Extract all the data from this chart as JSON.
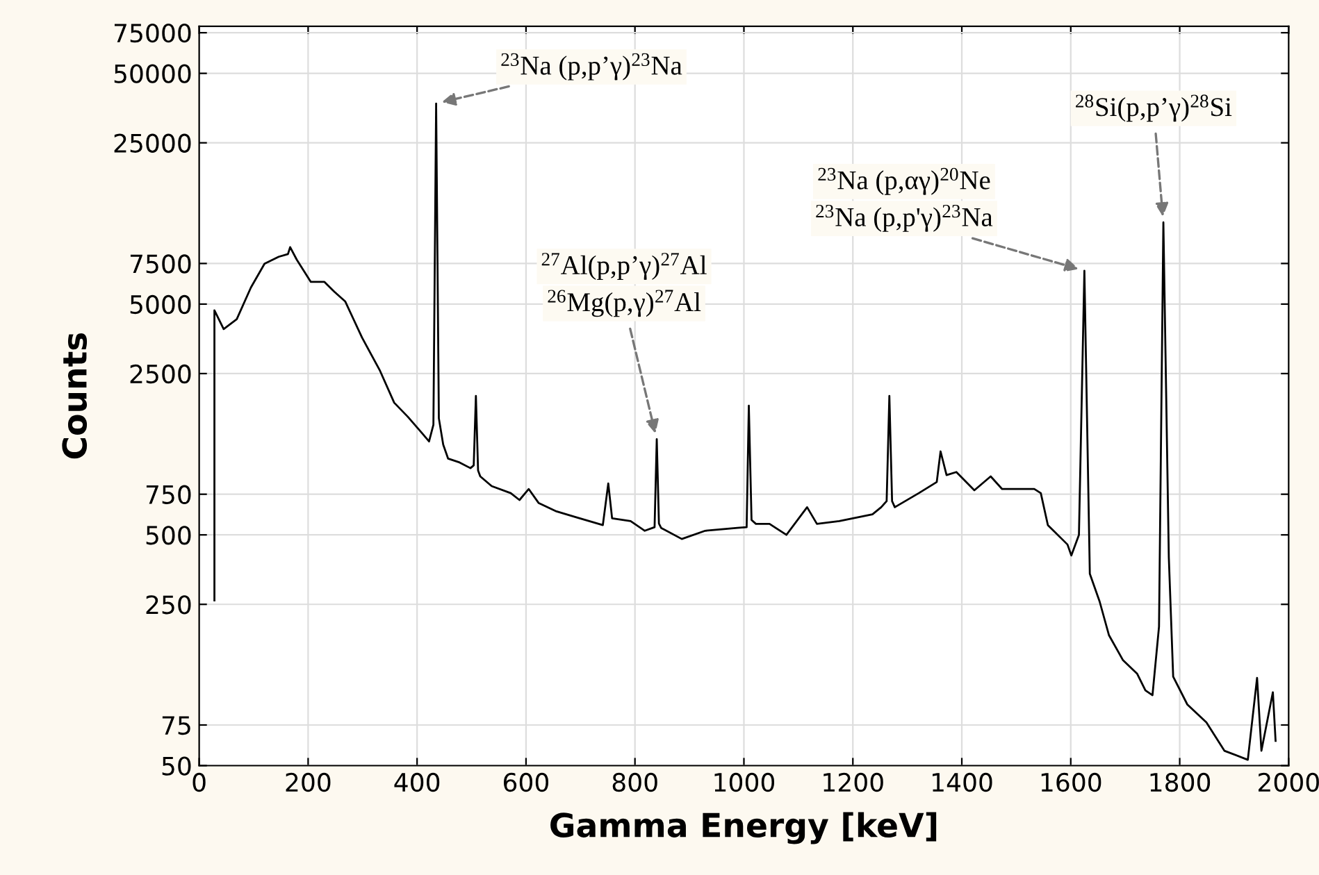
{
  "chart_data": {
    "type": "line",
    "xlabel": "Gamma Energy [keV]",
    "ylabel": "Counts",
    "log": "y",
    "grid": true,
    "xlim": [
      0,
      2000
    ],
    "xticks": [
      0,
      200,
      400,
      600,
      800,
      1000,
      1200,
      1400,
      1600,
      1800,
      2000
    ],
    "ylim": [
      50,
      80000
    ],
    "yticks": [
      50,
      75,
      250,
      500,
      750,
      2500,
      5000,
      7500,
      25000,
      50000,
      75000
    ],
    "series": [
      {
        "color": "#000000",
        "x": [
          28,
          28,
          45,
          69,
          95,
          120,
          146,
          163,
          167,
          179,
          205,
          230,
          248,
          268,
          299,
          332,
          358,
          383,
          409,
          422,
          430,
          435,
          440,
          448,
          457,
          478,
          498,
          504,
          508,
          512,
          516,
          537,
          572,
          588,
          605,
          623,
          656,
          690,
          741,
          751,
          758,
          792,
          818,
          836,
          840,
          844,
          848,
          886,
          929,
          988,
          1005,
          1009,
          1014,
          1022,
          1047,
          1078,
          1116,
          1134,
          1175,
          1236,
          1252,
          1262,
          1267,
          1272,
          1277,
          1321,
          1354,
          1361,
          1372,
          1390,
          1423,
          1453,
          1474,
          1533,
          1545,
          1558,
          1594,
          1601,
          1615,
          1625,
          1635,
          1653,
          1670,
          1696,
          1722,
          1737,
          1750,
          1762,
          1770,
          1780,
          1788,
          1814,
          1849,
          1882,
          1925,
          1942,
          1950,
          1971,
          1976
        ],
        "values": [
          260,
          4700,
          3900,
          4300,
          5900,
          7480,
          8020,
          8240,
          8830,
          7800,
          6240,
          6240,
          5660,
          5140,
          3580,
          2570,
          1870,
          1625,
          1380,
          1270,
          1500,
          37000,
          1600,
          1230,
          1070,
          1030,
          973,
          1000,
          2000,
          950,
          896,
          813,
          758,
          708,
          790,
          688,
          632,
          598,
          551,
          835,
          590,
          574,
          521,
          540,
          1300,
          560,
          536,
          480,
          521,
          536,
          540,
          1815,
          580,
          558,
          558,
          500,
          659,
          558,
          574,
          614,
          659,
          700,
          2000,
          700,
          659,
          758,
          847,
          1150,
          908,
          936,
          780,
          896,
          790,
          790,
          758,
          551,
          454,
          407,
          500,
          6980,
          339,
          257,
          184,
          143,
          125,
          106,
          101,
          200,
          11300,
          400,
          121.5,
          92,
          77,
          58,
          53,
          120,
          58,
          104,
          64
        ]
      }
    ],
    "annotations": [
      {
        "text": "$^{23}$Na (p,p’γ)$^{23}$Na",
        "x": 435,
        "y": 37000
      },
      "$^{27}$Al(p,p’γ)$^{27}$Al",
      {
        "text": "$^{26}$Mg(p,γ)$^{27}$Al",
        "x": 840,
        "y": 1300
      },
      "$^{23}$Na (p,αγ)$^{20}$Ne",
      {
        "text": "$^{23}$Na (p,p'γ)$^{23}$Na",
        "x": 1625,
        "y": 6980
      },
      {
        "text": "$^{28}$Si(p,p’γ)$^{28}$Si",
        "x": 1770,
        "y": 11300
      }
    ]
  }
}
